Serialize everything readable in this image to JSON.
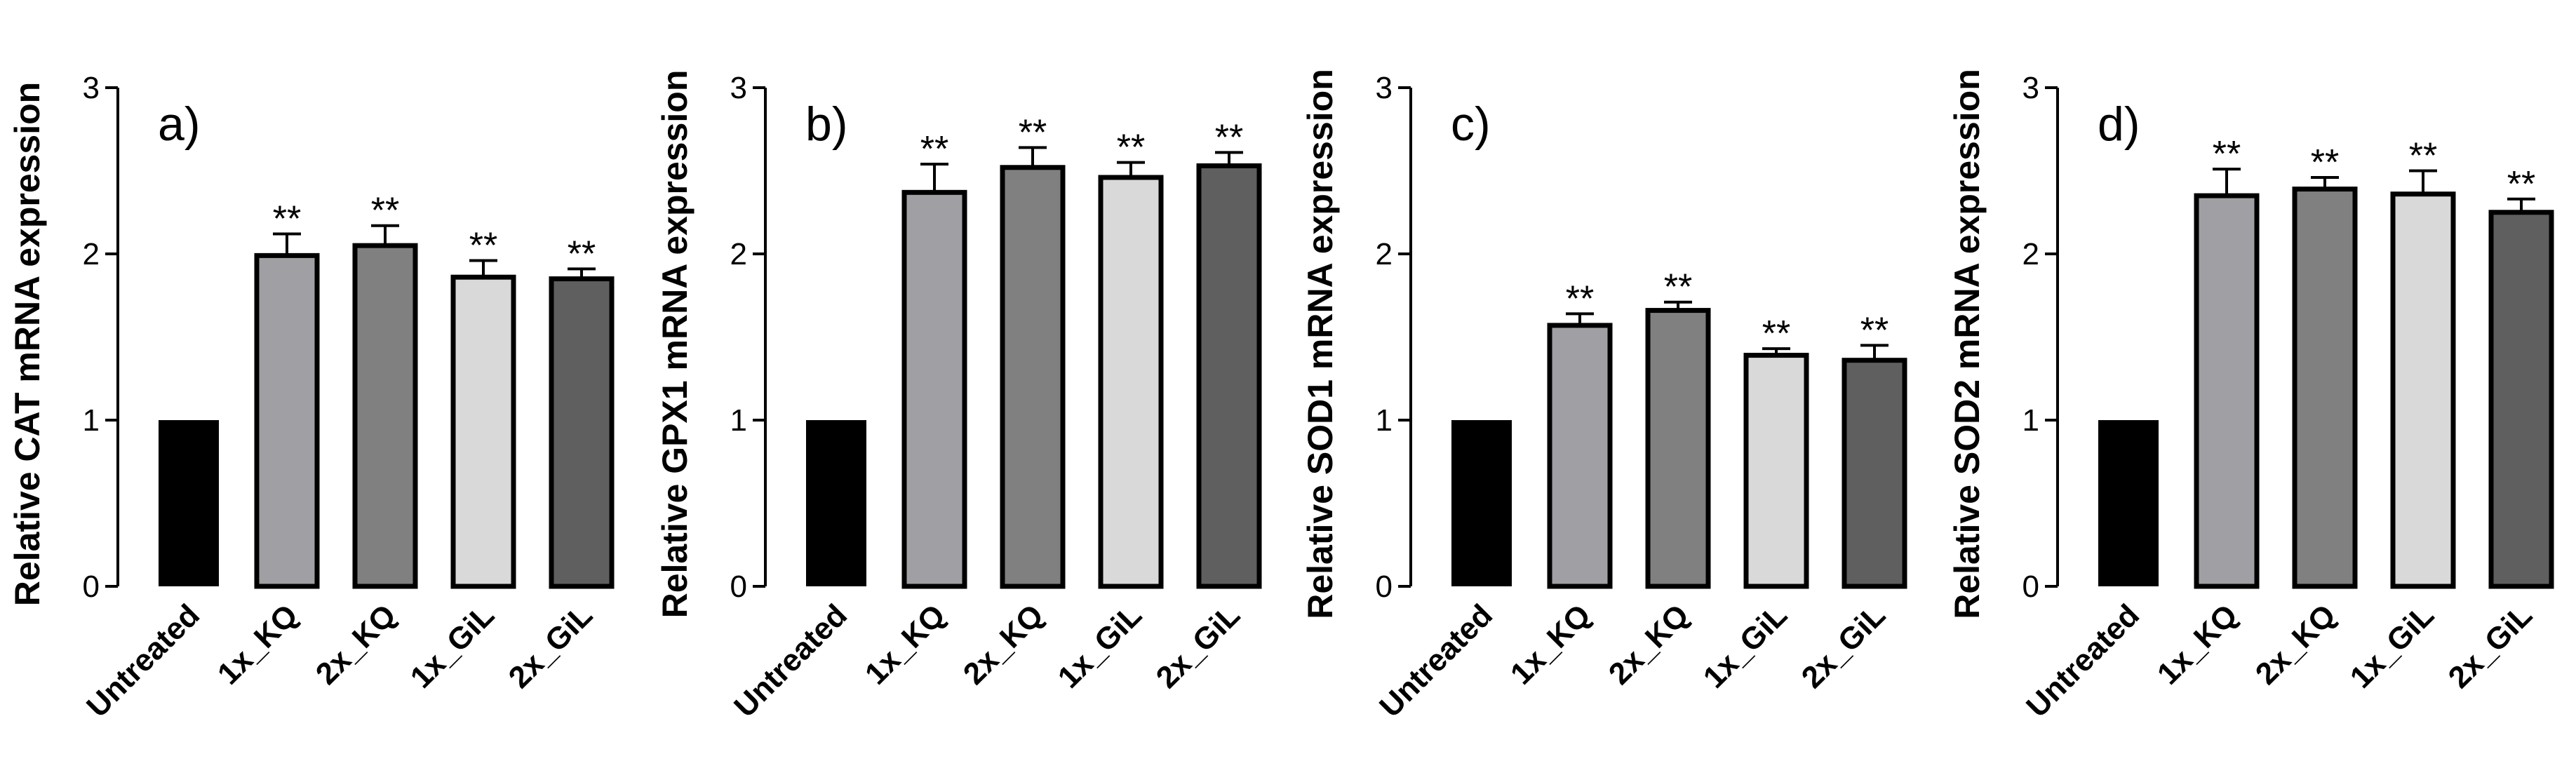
{
  "chart_data": [
    {
      "type": "bar",
      "panel_label": "a)",
      "title": "",
      "xlabel": "",
      "ylabel": "Relative CAT mRNA expression",
      "ylim": [
        0,
        3
      ],
      "yticks": [
        "0",
        "1",
        "2",
        "3"
      ],
      "categories": [
        "Untreated",
        "1x_KQ",
        "2x_KQ",
        "1x_GiL",
        "2x_GiL"
      ],
      "values": [
        1.0,
        1.99,
        2.05,
        1.86,
        1.85
      ],
      "errors": [
        0,
        0.13,
        0.12,
        0.1,
        0.06
      ],
      "significance": [
        "",
        "**",
        "**",
        "**",
        "**"
      ],
      "colors": [
        "#000000",
        "#a0a0a4",
        "#808080",
        "#d9d9d9",
        "#5f5f5f"
      ]
    },
    {
      "type": "bar",
      "panel_label": "b)",
      "title": "",
      "xlabel": "",
      "ylabel": "Relative GPX1 mRNA expression",
      "ylim": [
        0,
        3
      ],
      "yticks": [
        "0",
        "1",
        "2",
        "3"
      ],
      "categories": [
        "Untreated",
        "1x_KQ",
        "2x_KQ",
        "1x_GiL",
        "2x_GiL"
      ],
      "values": [
        1.0,
        2.37,
        2.52,
        2.46,
        2.53
      ],
      "errors": [
        0,
        0.17,
        0.12,
        0.09,
        0.08
      ],
      "significance": [
        "",
        "**",
        "**",
        "**",
        "**"
      ],
      "colors": [
        "#000000",
        "#a0a0a4",
        "#808080",
        "#d9d9d9",
        "#5f5f5f"
      ]
    },
    {
      "type": "bar",
      "panel_label": "c)",
      "title": "",
      "xlabel": "",
      "ylabel": "Relative SOD1 mRNA expression",
      "ylim": [
        0,
        3
      ],
      "yticks": [
        "0",
        "1",
        "2",
        "3"
      ],
      "categories": [
        "Untreated",
        "1x_KQ",
        "2x_KQ",
        "1x_GiL",
        "2x_GiL"
      ],
      "values": [
        1.0,
        1.57,
        1.66,
        1.39,
        1.36
      ],
      "errors": [
        0,
        0.07,
        0.05,
        0.04,
        0.09
      ],
      "significance": [
        "",
        "**",
        "**",
        "**",
        "**"
      ],
      "colors": [
        "#000000",
        "#a0a0a4",
        "#808080",
        "#d9d9d9",
        "#5f5f5f"
      ]
    },
    {
      "type": "bar",
      "panel_label": "d)",
      "title": "",
      "xlabel": "",
      "ylabel": "Relative SOD2 mRNA expression",
      "ylim": [
        0,
        3
      ],
      "yticks": [
        "0",
        "1",
        "2",
        "3"
      ],
      "categories": [
        "Untreated",
        "1x_KQ",
        "2x_KQ",
        "1x_GiL",
        "2x_GiL"
      ],
      "values": [
        1.0,
        2.35,
        2.39,
        2.36,
        2.25
      ],
      "errors": [
        0,
        0.16,
        0.07,
        0.14,
        0.08
      ],
      "significance": [
        "",
        "**",
        "**",
        "**",
        "**"
      ],
      "colors": [
        "#000000",
        "#a0a0a4",
        "#808080",
        "#d9d9d9",
        "#5f5f5f"
      ]
    }
  ]
}
